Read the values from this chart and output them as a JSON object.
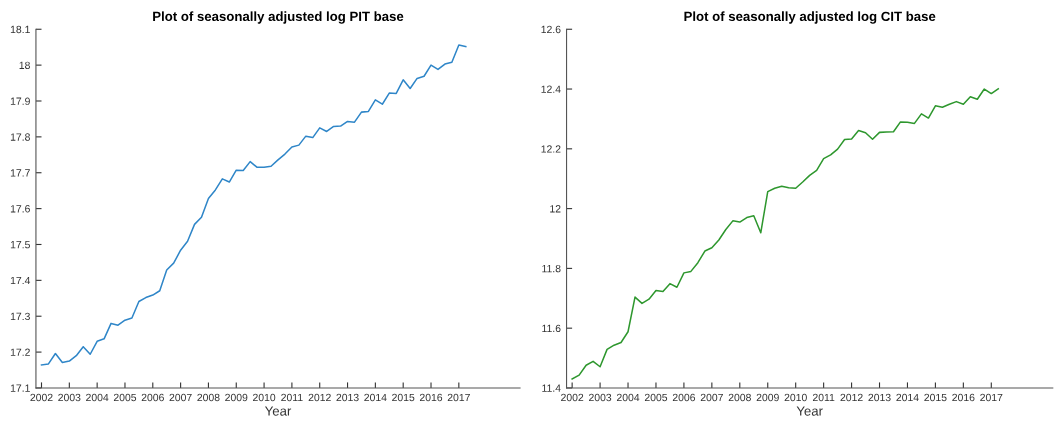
{
  "chart_data": [
    {
      "type": "line",
      "title": "Plot of seasonally adjusted log PIT base",
      "xlabel": "Year",
      "x": [
        2002.0,
        2002.25,
        2002.5,
        2002.75,
        2003.0,
        2003.25,
        2003.5,
        2003.75,
        2004.0,
        2004.25,
        2004.5,
        2004.75,
        2005.0,
        2005.25,
        2005.5,
        2005.75,
        2006.0,
        2006.25,
        2006.5,
        2006.75,
        2007.0,
        2007.25,
        2007.5,
        2007.75,
        2008.0,
        2008.25,
        2008.5,
        2008.75,
        2009.0,
        2009.25,
        2009.5,
        2009.75,
        2010.0,
        2010.25,
        2010.5,
        2010.75,
        2011.0,
        2011.25,
        2011.5,
        2011.75,
        2012.0,
        2012.25,
        2012.5,
        2012.75,
        2013.0,
        2013.25,
        2013.5,
        2013.75,
        2014.0,
        2014.25,
        2014.5,
        2014.75,
        2015.0,
        2015.25,
        2015.5,
        2015.75,
        2016.0,
        2016.25,
        2016.5,
        2016.75,
        2017.0,
        2017.25
      ],
      "series": [
        {
          "color": "#2f86c8",
          "values": [
            17.164,
            17.167,
            17.196,
            17.171,
            17.175,
            17.19,
            17.215,
            17.194,
            17.23,
            17.237,
            17.28,
            17.275,
            17.289,
            17.295,
            17.341,
            17.352,
            17.359,
            17.371,
            17.429,
            17.448,
            17.484,
            17.509,
            17.556,
            17.576,
            17.628,
            17.652,
            17.683,
            17.674,
            17.707,
            17.706,
            17.731,
            17.715,
            17.715,
            17.718,
            17.736,
            17.752,
            17.772,
            17.777,
            17.802,
            17.798,
            17.825,
            17.815,
            17.829,
            17.83,
            17.843,
            17.841,
            17.869,
            17.871,
            17.903,
            17.891,
            17.922,
            17.921,
            17.959,
            17.935,
            17.963,
            17.969,
            18.0,
            17.988,
            18.003,
            18.008,
            18.056,
            18.052
          ]
        }
      ],
      "xlim": [
        2001.8,
        2019.2
      ],
      "xticks": [
        2002,
        2003,
        2004,
        2005,
        2006,
        2007,
        2008,
        2009,
        2010,
        2011,
        2012,
        2013,
        2014,
        2015,
        2016,
        2017
      ],
      "ylim": [
        17.1,
        18.1
      ],
      "yticks": [
        17.1,
        17.2,
        17.3,
        17.4,
        17.5,
        17.6,
        17.7,
        17.8,
        17.9,
        18,
        18.1
      ],
      "grid": false,
      "legend": false
    },
    {
      "type": "line",
      "title": "Plot of seasonally adjusted log CIT base",
      "xlabel": "Year",
      "x": [
        2002.0,
        2002.25,
        2002.5,
        2002.75,
        2003.0,
        2003.25,
        2003.5,
        2003.75,
        2004.0,
        2004.25,
        2004.5,
        2004.75,
        2005.0,
        2005.25,
        2005.5,
        2005.75,
        2006.0,
        2006.25,
        2006.5,
        2006.75,
        2007.0,
        2007.25,
        2007.5,
        2007.75,
        2008.0,
        2008.25,
        2008.5,
        2008.75,
        2009.0,
        2009.25,
        2009.5,
        2009.75,
        2010.0,
        2010.25,
        2010.5,
        2010.75,
        2011.0,
        2011.25,
        2011.5,
        2011.75,
        2012.0,
        2012.25,
        2012.5,
        2012.75,
        2013.0,
        2013.25,
        2013.5,
        2013.75,
        2014.0,
        2014.25,
        2014.5,
        2014.75,
        2015.0,
        2015.25,
        2015.5,
        2015.75,
        2016.0,
        2016.25,
        2016.5,
        2016.75,
        2017.0,
        2017.25
      ],
      "series": [
        {
          "color": "#2e972e",
          "values": [
            11.43,
            11.443,
            11.476,
            11.489,
            11.471,
            11.529,
            11.543,
            11.552,
            11.588,
            11.704,
            11.683,
            11.697,
            11.726,
            11.723,
            11.749,
            11.737,
            11.785,
            11.79,
            11.819,
            11.858,
            11.869,
            11.895,
            11.93,
            11.959,
            11.955,
            11.97,
            11.976,
            11.919,
            12.057,
            12.068,
            12.075,
            12.07,
            12.068,
            12.089,
            12.111,
            12.128,
            12.167,
            12.18,
            12.199,
            12.231,
            12.233,
            12.261,
            12.254,
            12.232,
            12.255,
            12.256,
            12.257,
            12.29,
            12.289,
            12.285,
            12.317,
            12.303,
            12.344,
            12.339,
            12.349,
            12.358,
            12.349,
            12.374,
            12.366,
            12.4,
            12.385,
            12.401
          ]
        }
      ],
      "xlim": [
        2001.8,
        2019.2
      ],
      "xticks": [
        2002,
        2003,
        2004,
        2005,
        2006,
        2007,
        2008,
        2009,
        2010,
        2011,
        2012,
        2013,
        2014,
        2015,
        2016,
        2017
      ],
      "ylim": [
        11.4,
        12.6
      ],
      "yticks": [
        11.4,
        11.6,
        11.8,
        12,
        12.2,
        12.4,
        12.6
      ],
      "grid": false,
      "legend": false
    }
  ]
}
